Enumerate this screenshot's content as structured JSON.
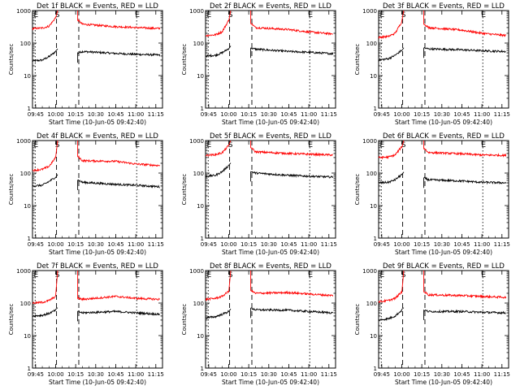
{
  "common": {
    "ylabel": "Counts/sec",
    "xlabel": "Start Time (10-Jun-05 09:42:40)",
    "y_ticks": [
      "1",
      "10",
      "100",
      "1000"
    ],
    "x_ticks": [
      "09:45",
      "10:00",
      "10:15",
      "10:30",
      "10:45",
      "11:00",
      "11:15"
    ],
    "marker_labels": [
      "E",
      "S",
      "E"
    ],
    "series_colors": {
      "Events": "#000000",
      "LLD": "#ff0000"
    }
  },
  "chart_data": [
    {
      "type": "line",
      "title": "Det 1f BLACK = Events, RED = LLD",
      "ylim": [
        1,
        1000
      ],
      "yscale": "log",
      "xlim": [
        "09:42:40",
        "11:20:00"
      ],
      "markers": {
        "E1": "09:44:40",
        "S": "10:00:40",
        "S_end": "10:17:20",
        "E2": "11:00:40"
      },
      "gap": [
        "10:01:30",
        "10:16:30"
      ],
      "series": [
        {
          "name": "Events",
          "before": [
            [
              "09:42:40",
              28
            ],
            [
              "09:50:00",
              30
            ],
            [
              "09:55:00",
              38
            ],
            [
              "10:00:00",
              55
            ]
          ],
          "after": [
            [
              "10:17:00",
              50
            ],
            [
              "10:20:00",
              55
            ],
            [
              "10:45:00",
              48
            ],
            [
              "11:00:00",
              45
            ],
            [
              "11:18:00",
              43
            ]
          ]
        },
        {
          "name": "LLD",
          "before": [
            [
              "09:42:40",
              280
            ],
            [
              "09:50:00",
              290
            ],
            [
              "09:55:00",
              330
            ],
            [
              "10:00:00",
              600
            ]
          ],
          "after": [
            [
              "10:17:00",
              500
            ],
            [
              "10:20:00",
              380
            ],
            [
              "10:45:00",
              320
            ],
            [
              "11:00:00",
              300
            ],
            [
              "11:18:00",
              280
            ]
          ]
        }
      ]
    },
    {
      "type": "line",
      "title": "Det 2f BLACK = Events, RED = LLD",
      "ylim": [
        1,
        1000
      ],
      "yscale": "log",
      "xlim": [
        "09:42:40",
        "11:20:00"
      ],
      "markers": {
        "E1": "09:44:40",
        "S": "10:00:40",
        "S_end": "10:17:20",
        "E2": "11:00:40"
      },
      "gap": [
        "10:01:30",
        "10:16:30"
      ],
      "series": [
        {
          "name": "Events",
          "before": [
            [
              "09:42:40",
              40
            ],
            [
              "09:50:00",
              42
            ],
            [
              "09:55:00",
              50
            ],
            [
              "10:00:00",
              68
            ]
          ],
          "after": [
            [
              "10:17:00",
              70
            ],
            [
              "10:20:00",
              65
            ],
            [
              "10:45:00",
              55
            ],
            [
              "11:00:00",
              52
            ],
            [
              "11:18:00",
              47
            ]
          ]
        },
        {
          "name": "LLD",
          "before": [
            [
              "09:42:40",
              170
            ],
            [
              "09:50:00",
              180
            ],
            [
              "09:55:00",
              220
            ],
            [
              "10:00:00",
              500
            ]
          ],
          "after": [
            [
              "10:17:00",
              400
            ],
            [
              "10:20:00",
              300
            ],
            [
              "10:45:00",
              260
            ],
            [
              "11:00:00",
              220
            ],
            [
              "11:18:00",
              190
            ]
          ]
        }
      ]
    },
    {
      "type": "line",
      "title": "Det 3f BLACK = Events, RED = LLD",
      "ylim": [
        1,
        1000
      ],
      "yscale": "log",
      "xlim": [
        "09:42:40",
        "11:20:00"
      ],
      "markers": {
        "E1": "09:44:40",
        "S": "10:00:40",
        "S_end": "10:17:20",
        "E2": "11:00:40"
      },
      "gap": [
        "10:01:30",
        "10:16:30"
      ],
      "series": [
        {
          "name": "Events",
          "before": [
            [
              "09:42:40",
              30
            ],
            [
              "09:50:00",
              33
            ],
            [
              "09:55:00",
              42
            ],
            [
              "10:00:00",
              60
            ]
          ],
          "after": [
            [
              "10:17:00",
              70
            ],
            [
              "10:20:00",
              66
            ],
            [
              "10:45:00",
              62
            ],
            [
              "11:00:00",
              58
            ],
            [
              "11:18:00",
              55
            ]
          ]
        },
        {
          "name": "LLD",
          "before": [
            [
              "09:42:40",
              150
            ],
            [
              "09:50:00",
              160
            ],
            [
              "09:55:00",
              200
            ],
            [
              "10:00:00",
              450
            ]
          ],
          "after": [
            [
              "10:17:00",
              380
            ],
            [
              "10:20:00",
              300
            ],
            [
              "10:45:00",
              250
            ],
            [
              "11:00:00",
              200
            ],
            [
              "11:18:00",
              170
            ]
          ]
        }
      ]
    },
    {
      "type": "line",
      "title": "Det 4f BLACK = Events, RED = LLD",
      "ylim": [
        1,
        1000
      ],
      "yscale": "log",
      "xlim": [
        "09:42:40",
        "11:20:00"
      ],
      "markers": {
        "E1": "09:44:40",
        "S": "10:00:40",
        "S_end": "10:17:20",
        "E2": "11:00:40"
      },
      "gap": [
        "10:01:30",
        "10:16:30"
      ],
      "series": [
        {
          "name": "Events",
          "before": [
            [
              "09:42:40",
              40
            ],
            [
              "09:50:00",
              42
            ],
            [
              "09:55:00",
              55
            ],
            [
              "10:00:00",
              75
            ]
          ],
          "after": [
            [
              "10:17:00",
              60
            ],
            [
              "10:20:00",
              52
            ],
            [
              "10:45:00",
              45
            ],
            [
              "11:00:00",
              42
            ],
            [
              "11:18:00",
              38
            ]
          ]
        },
        {
          "name": "LLD",
          "before": [
            [
              "09:42:40",
              120
            ],
            [
              "09:50:00",
              130
            ],
            [
              "09:55:00",
              160
            ],
            [
              "10:00:00",
              300
            ]
          ],
          "after": [
            [
              "10:17:00",
              320
            ],
            [
              "10:20:00",
              240
            ],
            [
              "10:45:00",
              230
            ],
            [
              "11:00:00",
              190
            ],
            [
              "11:18:00",
              170
            ]
          ]
        }
      ]
    },
    {
      "type": "line",
      "title": "Det 5f BLACK = Events, RED = LLD",
      "ylim": [
        1,
        1000
      ],
      "yscale": "log",
      "xlim": [
        "09:42:40",
        "11:20:00"
      ],
      "markers": {
        "E1": "09:44:40",
        "S": "10:00:40",
        "S_end": "10:17:20",
        "E2": "11:00:40"
      },
      "gap": [
        "10:01:30",
        "10:16:30"
      ],
      "series": [
        {
          "name": "Events",
          "before": [
            [
              "09:42:40",
              80
            ],
            [
              "09:50:00",
              85
            ],
            [
              "09:55:00",
              110
            ],
            [
              "10:00:00",
              170
            ]
          ],
          "after": [
            [
              "10:17:00",
              110
            ],
            [
              "10:20:00",
              100
            ],
            [
              "10:45:00",
              85
            ],
            [
              "11:00:00",
              80
            ],
            [
              "11:18:00",
              75
            ]
          ]
        },
        {
          "name": "LLD",
          "before": [
            [
              "09:42:40",
              350
            ],
            [
              "09:50:00",
              370
            ],
            [
              "09:55:00",
              420
            ],
            [
              "10:00:00",
              700
            ]
          ],
          "after": [
            [
              "10:17:00",
              600
            ],
            [
              "10:20:00",
              450
            ],
            [
              "10:45:00",
              400
            ],
            [
              "11:00:00",
              380
            ],
            [
              "11:18:00",
              360
            ]
          ]
        }
      ]
    },
    {
      "type": "line",
      "title": "Det 6f BLACK = Events, RED = LLD",
      "ylim": [
        1,
        1000
      ],
      "yscale": "log",
      "xlim": [
        "09:42:40",
        "11:20:00"
      ],
      "markers": {
        "E1": "09:44:40",
        "S": "10:00:40",
        "S_end": "10:17:20",
        "E2": "11:00:40"
      },
      "gap": [
        "10:01:30",
        "10:16:30"
      ],
      "series": [
        {
          "name": "Events",
          "before": [
            [
              "09:42:40",
              50
            ],
            [
              "09:50:00",
              52
            ],
            [
              "09:55:00",
              62
            ],
            [
              "10:00:00",
              90
            ]
          ],
          "after": [
            [
              "10:17:00",
              70
            ],
            [
              "10:20:00",
              62
            ],
            [
              "10:45:00",
              57
            ],
            [
              "11:00:00",
              52
            ],
            [
              "11:18:00",
              50
            ]
          ]
        },
        {
          "name": "LLD",
          "before": [
            [
              "09:42:40",
              300
            ],
            [
              "09:50:00",
              310
            ],
            [
              "09:55:00",
              360
            ],
            [
              "10:00:00",
              650
            ]
          ],
          "after": [
            [
              "10:17:00",
              560
            ],
            [
              "10:20:00",
              430
            ],
            [
              "10:45:00",
              390
            ],
            [
              "11:00:00",
              360
            ],
            [
              "11:18:00",
              350
            ]
          ]
        }
      ]
    },
    {
      "type": "line",
      "title": "Det 7f BLACK = Events, RED = LLD",
      "ylim": [
        1,
        1000
      ],
      "yscale": "log",
      "xlim": [
        "09:42:40",
        "11:20:00"
      ],
      "markers": {
        "E1": "09:44:40",
        "S": "10:00:40",
        "S_end": "10:17:20",
        "E2": "11:00:40"
      },
      "gap": [
        "10:01:30",
        "10:16:30"
      ],
      "series": [
        {
          "name": "Events",
          "before": [
            [
              "09:42:40",
              40
            ],
            [
              "09:50:00",
              42
            ],
            [
              "09:55:00",
              48
            ],
            [
              "10:00:00",
              60
            ]
          ],
          "after": [
            [
              "10:17:00",
              55
            ],
            [
              "10:20:00",
              50
            ],
            [
              "10:45:00",
              55
            ],
            [
              "11:00:00",
              50
            ],
            [
              "11:18:00",
              45
            ]
          ]
        },
        {
          "name": "LLD",
          "before": [
            [
              "09:42:40",
              100
            ],
            [
              "09:50:00",
              105
            ],
            [
              "09:55:00",
              120
            ],
            [
              "10:00:00",
              160
            ]
          ],
          "after": [
            [
              "10:17:00",
              140
            ],
            [
              "10:20:00",
              130
            ],
            [
              "10:45:00",
              160
            ],
            [
              "11:00:00",
              140
            ],
            [
              "11:18:00",
              130
            ]
          ]
        }
      ]
    },
    {
      "type": "line",
      "title": "Det 8f BLACK = Events, RED = LLD",
      "ylim": [
        1,
        1000
      ],
      "yscale": "log",
      "xlim": [
        "09:42:40",
        "11:20:00"
      ],
      "markers": {
        "E1": "09:44:40",
        "S": "10:00:40",
        "S_end": "10:17:20",
        "E2": "11:00:40"
      },
      "gap": [
        "10:01:30",
        "10:16:30"
      ],
      "series": [
        {
          "name": "Events",
          "before": [
            [
              "09:42:40",
              35
            ],
            [
              "09:50:00",
              38
            ],
            [
              "09:55:00",
              45
            ],
            [
              "10:00:00",
              55
            ]
          ],
          "after": [
            [
              "10:17:00",
              70
            ],
            [
              "10:20:00",
              62
            ],
            [
              "10:45:00",
              60
            ],
            [
              "11:00:00",
              55
            ],
            [
              "11:18:00",
              50
            ]
          ]
        },
        {
          "name": "LLD",
          "before": [
            [
              "09:42:40",
              130
            ],
            [
              "09:50:00",
              140
            ],
            [
              "09:55:00",
              160
            ],
            [
              "10:00:00",
              230
            ]
          ],
          "after": [
            [
              "10:17:00",
              240
            ],
            [
              "10:20:00",
              200
            ],
            [
              "10:45:00",
              210
            ],
            [
              "11:00:00",
              190
            ],
            [
              "11:18:00",
              170
            ]
          ]
        }
      ]
    },
    {
      "type": "line",
      "title": "Det 9f BLACK = Events, RED = LLD",
      "ylim": [
        1,
        1000
      ],
      "yscale": "log",
      "xlim": [
        "09:42:40",
        "11:20:00"
      ],
      "markers": {
        "E1": "09:44:40",
        "S": "10:00:40",
        "S_end": "10:17:20",
        "E2": "11:00:40"
      },
      "gap": [
        "10:01:30",
        "10:16:30"
      ],
      "series": [
        {
          "name": "Events",
          "before": [
            [
              "09:42:40",
              30
            ],
            [
              "09:50:00",
              33
            ],
            [
              "09:55:00",
              40
            ],
            [
              "10:00:00",
              60
            ]
          ],
          "after": [
            [
              "10:17:00",
              60
            ],
            [
              "10:20:00",
              55
            ],
            [
              "10:45:00",
              55
            ],
            [
              "11:00:00",
              52
            ],
            [
              "11:18:00",
              50
            ]
          ]
        },
        {
          "name": "LLD",
          "before": [
            [
              "09:42:40",
              110
            ],
            [
              "09:50:00",
              120
            ],
            [
              "09:55:00",
              140
            ],
            [
              "10:00:00",
              220
            ]
          ],
          "after": [
            [
              "10:17:00",
              220
            ],
            [
              "10:20:00",
              180
            ],
            [
              "10:45:00",
              170
            ],
            [
              "11:00:00",
              160
            ],
            [
              "11:18:00",
              150
            ]
          ]
        }
      ]
    }
  ]
}
